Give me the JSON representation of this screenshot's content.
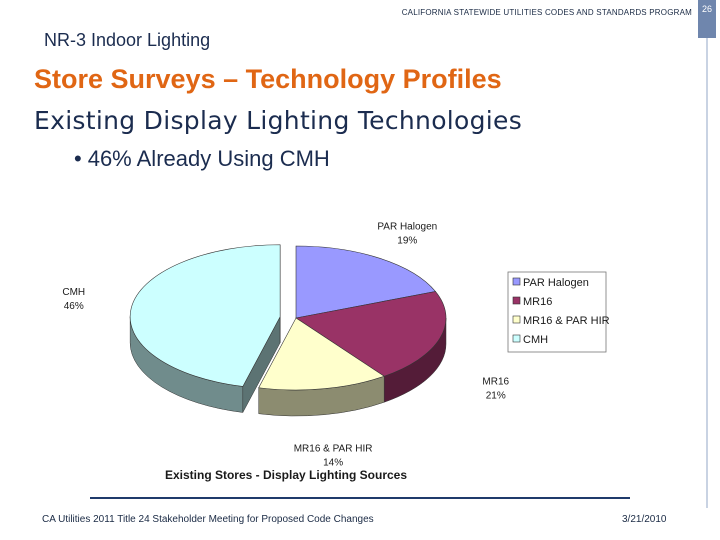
{
  "header": {
    "program": "CALIFORNIA STATEWIDE UTILITIES CODES AND STANDARDS PROGRAM",
    "page_number": "26",
    "section": "NR-3 Indoor Lighting"
  },
  "slide": {
    "title": "Store Surveys – Technology Profiles",
    "subtitle": "Existing Display Lighting Technologies",
    "bullet": "46% Already Using CMH"
  },
  "chart_data": {
    "type": "pie",
    "title": "Existing Stores - Display Lighting Sources",
    "legend_position": "right",
    "categories": [
      "PAR Halogen",
      "MR16",
      "MR16 & PAR HIR",
      "CMH"
    ],
    "values": [
      19,
      21,
      14,
      46
    ],
    "value_labels": [
      "19%",
      "21%",
      "14%",
      "46%"
    ],
    "colors": [
      "#9999ff",
      "#993366",
      "#ffffcc",
      "#ccffff"
    ],
    "exploded": [
      "CMH"
    ],
    "three_d": true
  },
  "footer": {
    "left": "CA Utilities 2011 Title 24 Stakeholder Meeting for Proposed Code Changes",
    "right": "3/21/2010"
  }
}
